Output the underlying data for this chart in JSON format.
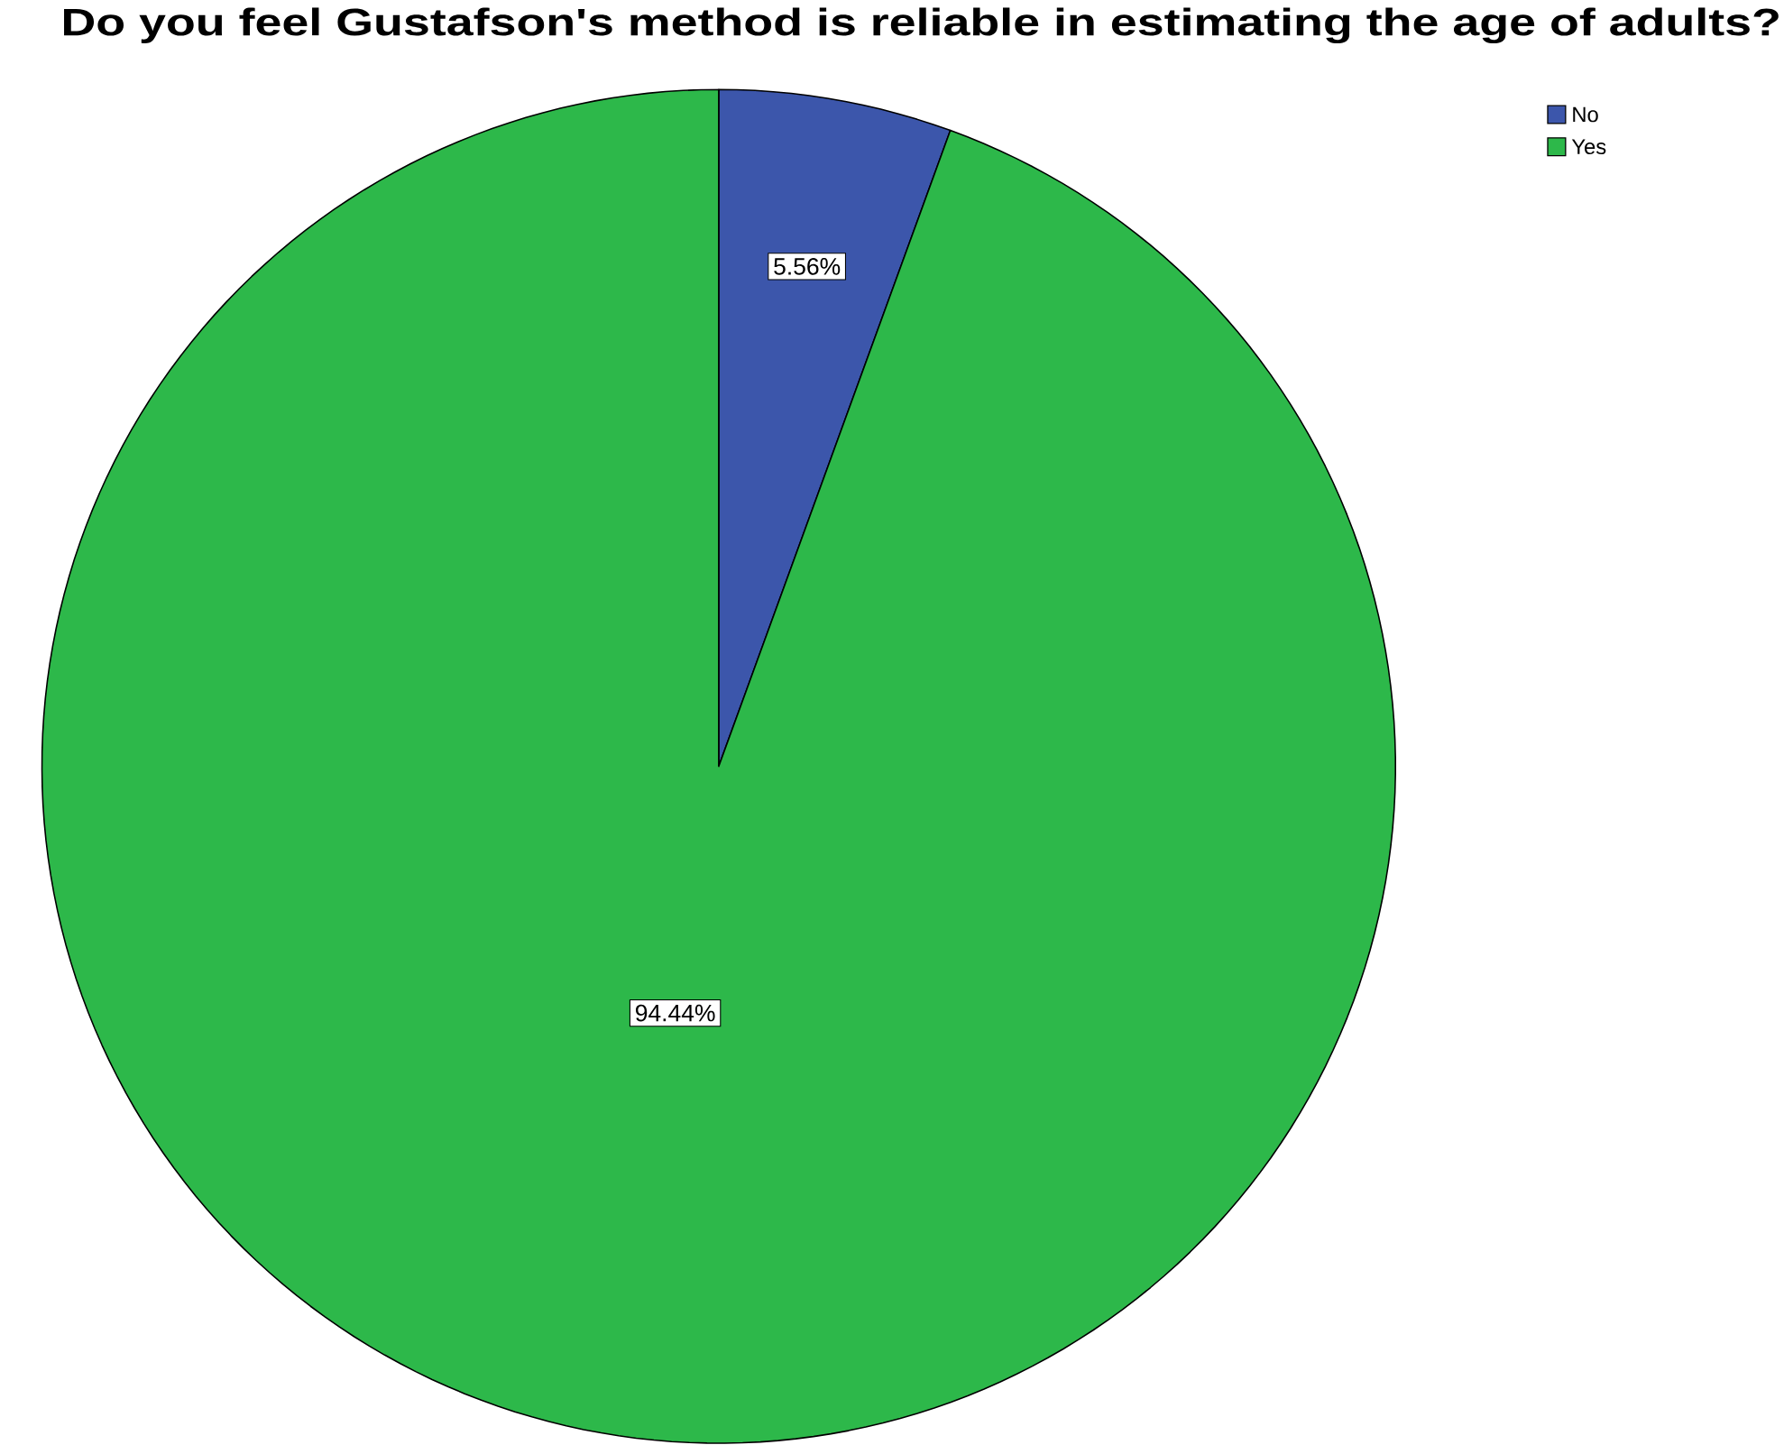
{
  "chart_data": {
    "type": "pie",
    "title": "Do you feel Gustafson's method is reliable in estimating the age of adults?",
    "categories": [
      "No",
      "Yes"
    ],
    "values": [
      5.56,
      94.44
    ],
    "colors": [
      "#3c56ab",
      "#2db84a"
    ],
    "value_labels": [
      "5.56%",
      "94.44%"
    ],
    "legend": "top right"
  }
}
